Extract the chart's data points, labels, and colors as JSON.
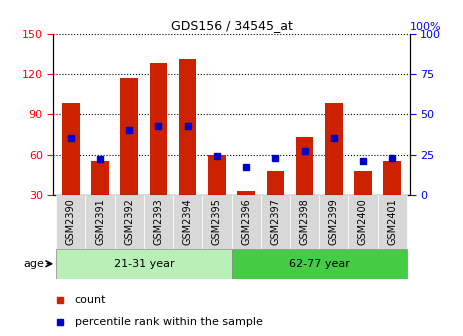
{
  "title": "GDS156 / 34545_at",
  "samples": [
    "GSM2390",
    "GSM2391",
    "GSM2392",
    "GSM2393",
    "GSM2394",
    "GSM2395",
    "GSM2396",
    "GSM2397",
    "GSM2398",
    "GSM2399",
    "GSM2400",
    "GSM2401"
  ],
  "counts": [
    98,
    55,
    117,
    128,
    131,
    60,
    33,
    48,
    73,
    98,
    48,
    55
  ],
  "percentiles": [
    35,
    22,
    40,
    43,
    43,
    24,
    17,
    23,
    27,
    35,
    21,
    23
  ],
  "ylim_left": [
    30,
    150
  ],
  "ylim_right": [
    0,
    100
  ],
  "yticks_left": [
    30,
    60,
    90,
    120,
    150
  ],
  "yticks_right": [
    0,
    25,
    50,
    75,
    100
  ],
  "groups": [
    {
      "label": "21-31 year",
      "start": 0,
      "end": 6,
      "color": "#b8f0b8"
    },
    {
      "label": "62-77 year",
      "start": 6,
      "end": 12,
      "color": "#44cc44"
    }
  ],
  "age_label": "age",
  "bar_color": "#cc2200",
  "point_color": "#0000cc",
  "legend_count": "count",
  "legend_percentile": "percentile rank within the sample",
  "tick_bg_color": "#d8d8d8",
  "group_border_color": "#888888"
}
